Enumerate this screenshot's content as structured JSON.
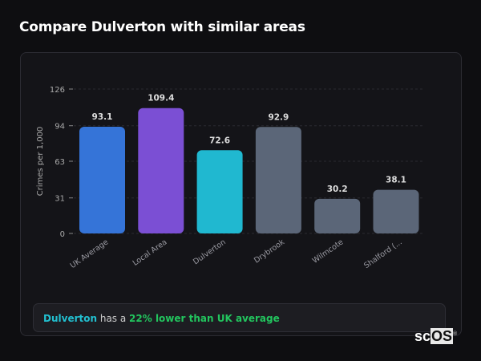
{
  "title": "Compare Dulverton with similar areas",
  "chart_data": {
    "type": "bar",
    "categories": [
      "UK Average",
      "Local Area",
      "Dulverton",
      "Drybrook",
      "Wilmcote",
      "Shalford (..."
    ],
    "values": [
      93.1,
      109.4,
      72.6,
      92.9,
      30.2,
      38.1
    ],
    "value_labels": [
      "93.1",
      "109.4",
      "72.6",
      "92.9",
      "30.2",
      "38.1"
    ],
    "colors": [
      "#3574d8",
      "#7b4fd4",
      "#20b8d0",
      "#5b6678",
      "#5b6678",
      "#5b6678"
    ],
    "ylabel": "Crimes per 1,000",
    "xlabel": "",
    "yticks": [
      0,
      31,
      63,
      94,
      126
    ],
    "ylim": [
      0,
      126
    ],
    "grid": true
  },
  "summary": {
    "area": "Dulverton",
    "middle": " has a ",
    "comparison": "22% lower than UK average"
  },
  "logo": {
    "text_a": "sc",
    "text_b": "OS",
    "mark": "®"
  }
}
